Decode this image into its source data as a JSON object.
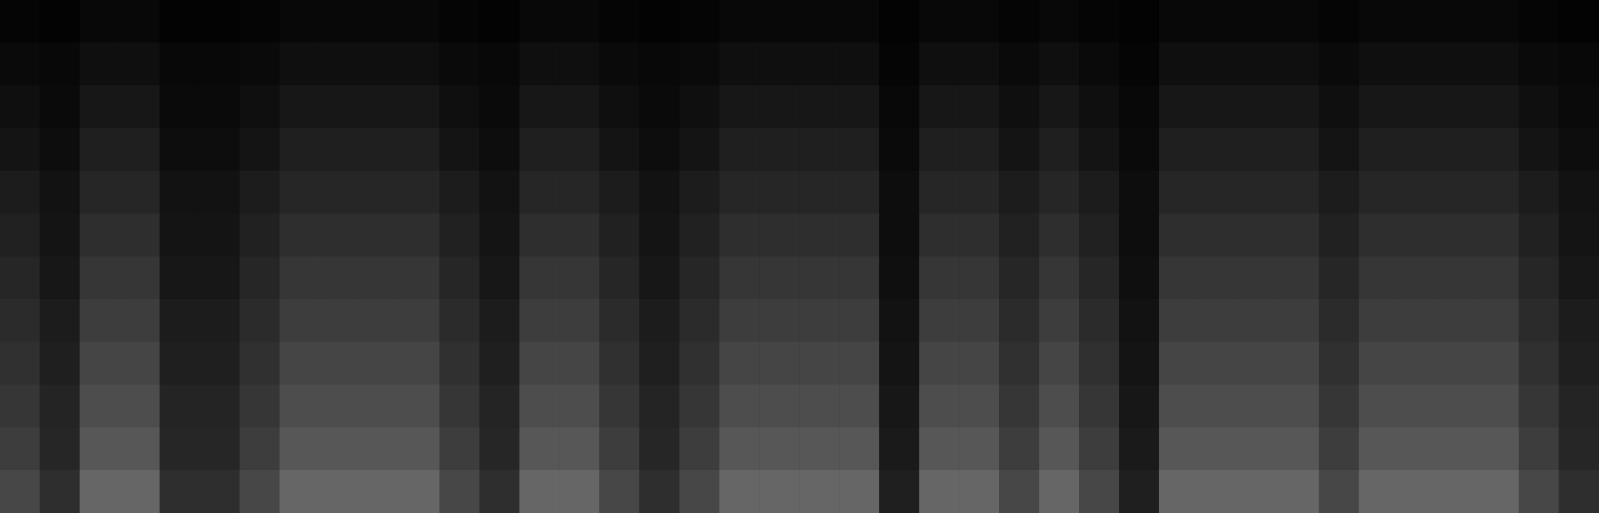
{
  "chart_data": {
    "type": "heatmap",
    "tick_labels": false,
    "color": "#ffffff",
    "value_range": [
      0,
      100
    ],
    "cells": [
      [
        2,
        1,
        3,
        3,
        1,
        1,
        2,
        3,
        3,
        3,
        3,
        2,
        1,
        3,
        3,
        2,
        1,
        2,
        3,
        3,
        3,
        3,
        1,
        3,
        3,
        2,
        3,
        2,
        1,
        3,
        3,
        3,
        3,
        2,
        3,
        3,
        3,
        3,
        2,
        1
      ],
      [
        4,
        3,
        6,
        6,
        3,
        3,
        4,
        6,
        6,
        6,
        6,
        4,
        3,
        6,
        6,
        4,
        3,
        4,
        6,
        6,
        6,
        6,
        2,
        6,
        6,
        4,
        6,
        4,
        2,
        6,
        6,
        6,
        6,
        4,
        6,
        6,
        6,
        6,
        4,
        3
      ],
      [
        6,
        4,
        9,
        9,
        4,
        4,
        6,
        9,
        9,
        9,
        9,
        6,
        4,
        9,
        9,
        6,
        4,
        6,
        9,
        9,
        9,
        9,
        3,
        9,
        9,
        6,
        9,
        6,
        3,
        9,
        9,
        9,
        9,
        6,
        9,
        9,
        9,
        9,
        6,
        4
      ],
      [
        8,
        5,
        12,
        12,
        5,
        5,
        8,
        12,
        12,
        12,
        12,
        8,
        5,
        12,
        12,
        8,
        5,
        8,
        12,
        12,
        12,
        12,
        4,
        12,
        12,
        8,
        12,
        8,
        4,
        12,
        12,
        12,
        12,
        8,
        12,
        12,
        12,
        12,
        8,
        5
      ],
      [
        11,
        7,
        15,
        15,
        7,
        7,
        11,
        15,
        15,
        15,
        15,
        11,
        7,
        15,
        15,
        11,
        7,
        11,
        15,
        15,
        15,
        15,
        5,
        15,
        15,
        11,
        15,
        11,
        5,
        15,
        15,
        15,
        15,
        11,
        15,
        15,
        15,
        15,
        11,
        7
      ],
      [
        13,
        8,
        18,
        18,
        8,
        8,
        13,
        18,
        18,
        18,
        18,
        13,
        8,
        18,
        18,
        13,
        8,
        13,
        18,
        18,
        18,
        18,
        5,
        18,
        18,
        13,
        18,
        13,
        5,
        18,
        18,
        18,
        18,
        13,
        18,
        18,
        18,
        18,
        13,
        8
      ],
      [
        15,
        9,
        21,
        21,
        9,
        9,
        15,
        21,
        21,
        21,
        21,
        15,
        9,
        21,
        21,
        15,
        9,
        15,
        21,
        21,
        21,
        21,
        6,
        21,
        21,
        15,
        21,
        15,
        6,
        21,
        21,
        21,
        21,
        15,
        21,
        21,
        21,
        21,
        15,
        9
      ],
      [
        17,
        11,
        24,
        24,
        11,
        11,
        17,
        24,
        24,
        24,
        24,
        17,
        11,
        24,
        24,
        17,
        11,
        17,
        24,
        24,
        24,
        24,
        7,
        24,
        24,
        17,
        24,
        17,
        7,
        24,
        24,
        24,
        24,
        17,
        24,
        24,
        24,
        24,
        17,
        11
      ],
      [
        19,
        12,
        27,
        27,
        12,
        12,
        19,
        27,
        27,
        27,
        27,
        19,
        12,
        27,
        27,
        19,
        12,
        19,
        27,
        27,
        27,
        27,
        8,
        27,
        27,
        19,
        27,
        19,
        8,
        27,
        27,
        27,
        27,
        19,
        27,
        27,
        27,
        27,
        19,
        12
      ],
      [
        21,
        14,
        30,
        30,
        14,
        14,
        21,
        30,
        30,
        30,
        30,
        21,
        14,
        30,
        30,
        21,
        14,
        21,
        30,
        30,
        30,
        30,
        9,
        30,
        30,
        21,
        30,
        21,
        9,
        30,
        30,
        30,
        30,
        21,
        30,
        30,
        30,
        30,
        21,
        14
      ],
      [
        24,
        15,
        34,
        34,
        15,
        15,
        24,
        34,
        34,
        34,
        34,
        24,
        15,
        34,
        34,
        24,
        15,
        24,
        34,
        34,
        34,
        34,
        10,
        34,
        34,
        24,
        34,
        24,
        10,
        34,
        34,
        34,
        34,
        24,
        34,
        34,
        34,
        34,
        24,
        15
      ],
      [
        28,
        18,
        40,
        40,
        18,
        18,
        28,
        40,
        40,
        40,
        40,
        28,
        18,
        40,
        40,
        28,
        18,
        28,
        40,
        40,
        40,
        40,
        12,
        40,
        40,
        28,
        40,
        28,
        12,
        40,
        40,
        40,
        40,
        28,
        40,
        40,
        40,
        40,
        28,
        18
      ]
    ]
  }
}
